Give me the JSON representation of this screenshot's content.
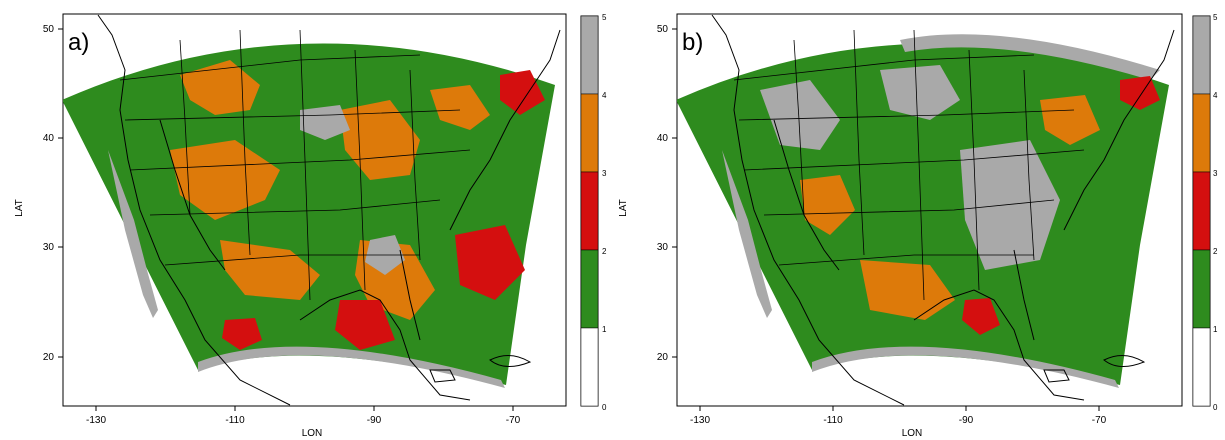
{
  "panels": [
    {
      "label": "a)",
      "xlabel": "LON",
      "ylabel": "LAT",
      "x_ticks": [
        "-130",
        "-110",
        "-90",
        "-70"
      ],
      "y_ticks": [
        "20",
        "30",
        "40",
        "50"
      ],
      "colorbar_ticks": [
        "0",
        "1",
        "2",
        "3",
        "4",
        "5"
      ]
    },
    {
      "label": "b)",
      "xlabel": "LON",
      "ylabel": "LAT",
      "x_ticks": [
        "-130",
        "-110",
        "-90",
        "-70"
      ],
      "y_ticks": [
        "20",
        "30",
        "40",
        "50"
      ],
      "colorbar_ticks": [
        "0",
        "1",
        "2",
        "3",
        "4",
        "5"
      ]
    }
  ],
  "legend_colors": [
    "#ffffff",
    "#2e8b1e",
    "#d40f0f",
    "#dd7a0a",
    "#a9a9a9"
  ],
  "map_extent": {
    "lon": [
      -135,
      -57
    ],
    "lat": [
      16,
      51
    ]
  },
  "dominant_class": {
    "a": "green",
    "b": "green"
  }
}
